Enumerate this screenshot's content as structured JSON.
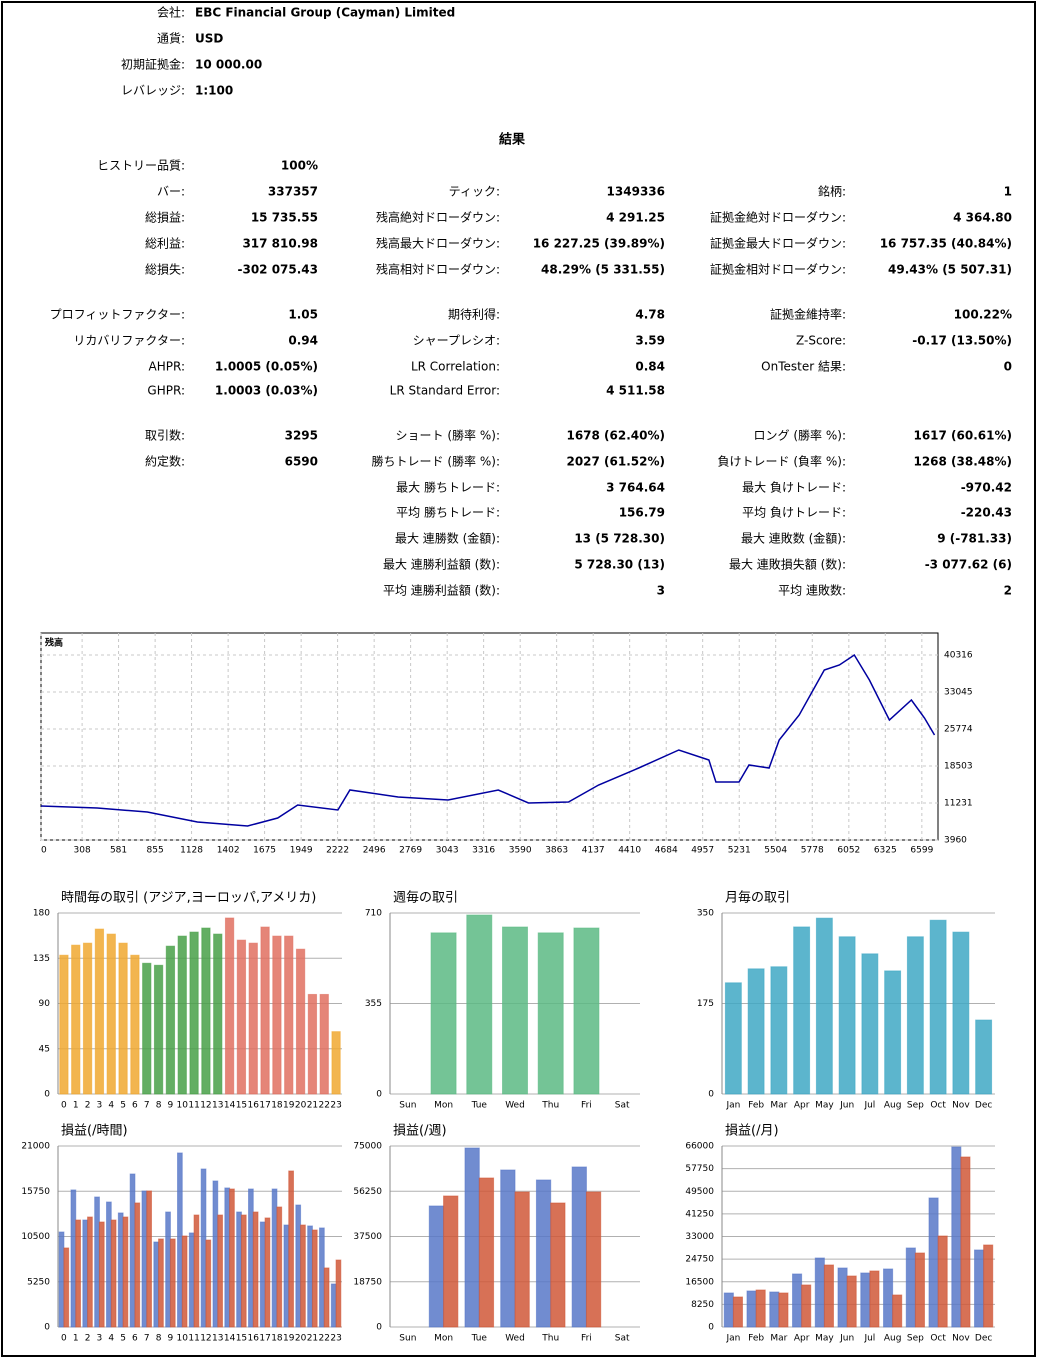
{
  "header": {
    "rows": [
      {
        "label": "会社:",
        "value": "EBC Financial Group (Cayman) Limited"
      },
      {
        "label": "通貨:",
        "value": "USD"
      },
      {
        "label": "初期証拠金:",
        "value": "10 000.00"
      },
      {
        "label": "レバレッジ:",
        "value": "1:100"
      }
    ]
  },
  "results": {
    "title": "結果",
    "rows": [
      [
        "ヒストリー品質:",
        "100%",
        null,
        null,
        null,
        null
      ],
      [
        "バー:",
        "337357",
        "ティック:",
        "1349336",
        "銘柄:",
        "1"
      ],
      [
        "総損益:",
        "15 735.55",
        "残高絶対ドローダウン:",
        "4 291.25",
        "証拠金絶対ドローダウン:",
        "4 364.80"
      ],
      [
        "総利益:",
        "317 810.98",
        "残高最大ドローダウン:",
        "16 227.25 (39.89%)",
        "証拠金最大ドローダウン:",
        "16 757.35 (40.84%)"
      ],
      [
        "総損失:",
        "-302 075.43",
        "残高相対ドローダウン:",
        "48.29% (5 331.55)",
        "証拠金相対ドローダウン:",
        "49.43% (5 507.31)"
      ],
      [
        "プロフィットファクター:",
        "1.05",
        "期待利得:",
        "4.78",
        "証拠金維持率:",
        "100.22%"
      ],
      [
        "リカバリファクター:",
        "0.94",
        "シャープレシオ:",
        "3.59",
        "Z-Score:",
        "-0.17 (13.50%)"
      ],
      [
        "AHPR:",
        "1.0005 (0.05%)",
        "LR Correlation:",
        "0.84",
        "OnTester 結果:",
        "0"
      ],
      [
        "GHPR:",
        "1.0003 (0.03%)",
        "LR Standard Error:",
        "4 511.58",
        null,
        null
      ],
      [
        "取引数:",
        "3295",
        "ショート (勝率 %):",
        "1678 (62.40%)",
        "ロング (勝率 %):",
        "1617 (60.61%)"
      ],
      [
        "約定数:",
        "6590",
        "勝ちトレード (勝率 %):",
        "2027 (61.52%)",
        "負けトレード (負率 %):",
        "1268 (38.48%)"
      ],
      [
        null,
        null,
        "最大 勝ちトレード:",
        "3 764.64",
        "最大 負けトレード:",
        "-970.42"
      ],
      [
        null,
        null,
        "平均 勝ちトレード:",
        "156.79",
        "平均 負けトレード:",
        "-220.43"
      ],
      [
        null,
        null,
        "最大 連勝数 (金額):",
        "13 (5 728.30)",
        "最大 連敗数 (金額):",
        "9 (-781.33)"
      ],
      [
        null,
        null,
        "最大 連勝利益額 (数):",
        "5 728.30 (13)",
        "最大 連敗損失額 (数):",
        "-3 077.62 (6)"
      ],
      [
        null,
        null,
        "平均 連勝利益額 (数):",
        "3",
        "平均 連敗数:",
        "2"
      ]
    ]
  },
  "chart_data": [
    {
      "type": "line",
      "title": "残高",
      "color": "#0000a0",
      "grid": true,
      "x": [
        0,
        421,
        796,
        1172,
        1548,
        1773,
        1923,
        2224,
        2314,
        2675,
        3050,
        3426,
        3652,
        3952,
        4177,
        4478,
        4778,
        5004,
        5056,
        5229,
        5304,
        5455,
        5530,
        5680,
        5868,
        5981,
        6093,
        6206,
        6356,
        6521,
        6619,
        6694
      ],
      "values": [
        10640,
        10250,
        9460,
        7500,
        6710,
        8280,
        10840,
        9860,
        13780,
        12410,
        11820,
        13780,
        11230,
        11430,
        14770,
        18110,
        21650,
        19680,
        15360,
        15360,
        18700,
        18110,
        23610,
        28520,
        37360,
        38350,
        40310,
        35400,
        27540,
        31480,
        27930,
        24590
      ],
      "xlim": [
        0,
        6720
      ],
      "xticks": [
        0,
        308,
        581,
        855,
        1128,
        1402,
        1675,
        1949,
        2222,
        2496,
        2769,
        3043,
        3316,
        3590,
        3863,
        4137,
        4410,
        4684,
        4957,
        5231,
        5504,
        5778,
        6052,
        6325,
        6599
      ],
      "ylim": [
        3960,
        44640
      ],
      "yticks": [
        3960,
        11231,
        18503,
        25774,
        33045,
        40316
      ]
    },
    {
      "type": "bar",
      "title": "時間毎の取引 (アジア,ヨーロッパ,アメリカ)",
      "grid": true,
      "categories": [
        "0",
        "1",
        "2",
        "3",
        "4",
        "5",
        "6",
        "7",
        "8",
        "9",
        "10",
        "11",
        "12",
        "13",
        "14",
        "15",
        "16",
        "17",
        "18",
        "19",
        "20",
        "21",
        "22",
        "23"
      ],
      "values": [
        138,
        148,
        150,
        164,
        159,
        150,
        138,
        130,
        128,
        147,
        157,
        161,
        165,
        159,
        175,
        153,
        150,
        166,
        157,
        157,
        144,
        99,
        99,
        62
      ],
      "colors": [
        "#f0a830",
        "#f0a830",
        "#f0a830",
        "#f0a830",
        "#f0a830",
        "#f0a830",
        "#f0a830",
        "#48a048",
        "#48a048",
        "#48a048",
        "#48a048",
        "#48a048",
        "#48a048",
        "#48a048",
        "#e07060",
        "#e07060",
        "#e07060",
        "#e07060",
        "#e07060",
        "#e07060",
        "#e07060",
        "#e07060",
        "#e07060",
        "#f0a830"
      ],
      "ylim": [
        0,
        180
      ],
      "yticks": [
        0,
        45,
        90,
        135,
        180
      ]
    },
    {
      "type": "bar",
      "title": "週毎の取引",
      "grid": true,
      "color": "#5cba84",
      "categories": [
        "Sun",
        "Mon",
        "Tue",
        "Wed",
        "Thu",
        "Fri",
        "Sat"
      ],
      "values": [
        0,
        632,
        702,
        655,
        632,
        651,
        0
      ],
      "ylim": [
        0,
        710
      ],
      "yticks": [
        0,
        355,
        710
      ]
    },
    {
      "type": "bar",
      "title": "月毎の取引",
      "grid": true,
      "color": "#40a8c4",
      "categories": [
        "Jan",
        "Feb",
        "Mar",
        "Apr",
        "May",
        "Jun",
        "Jul",
        "Aug",
        "Sep",
        "Oct",
        "Nov",
        "Dec"
      ],
      "values": [
        215,
        242,
        246,
        323,
        340,
        304,
        271,
        238,
        304,
        336,
        313,
        143
      ],
      "ylim": [
        0,
        350
      ],
      "yticks": [
        0,
        175,
        350
      ]
    },
    {
      "type": "bar",
      "title": "損益(/時間)",
      "grid": true,
      "categories": [
        "0",
        "1",
        "2",
        "3",
        "4",
        "5",
        "6",
        "7",
        "8",
        "9",
        "10",
        "11",
        "12",
        "13",
        "14",
        "15",
        "16",
        "17",
        "18",
        "19",
        "20",
        "21",
        "22",
        "23"
      ],
      "series": [
        {
          "color": "#5878c8",
          "values": [
            11020,
            15900,
            12410,
            15080,
            14500,
            13230,
            17750,
            15780,
            9860,
            13340,
            20190,
            10910,
            18330,
            16940,
            16130,
            13340,
            16010,
            12180,
            16010,
            11830,
            14150,
            11720,
            11490,
            4990
          ]
        },
        {
          "color": "#d05838",
          "values": [
            9170,
            12410,
            12760,
            12180,
            12410,
            12760,
            14390,
            15780,
            10210,
            10210,
            10560,
            12990,
            10090,
            12990,
            16010,
            12990,
            13340,
            12650,
            13920,
            18100,
            11830,
            11250,
            6850,
            7770
          ]
        }
      ],
      "ylim": [
        0,
        21000
      ],
      "yticks": [
        0,
        5250,
        10500,
        15750,
        21000
      ]
    },
    {
      "type": "bar",
      "title": "損益(/週)",
      "grid": true,
      "categories": [
        "Sun",
        "Mon",
        "Tue",
        "Wed",
        "Thu",
        "Fri",
        "Sat"
      ],
      "series": [
        {
          "color": "#5878c8",
          "values": [
            0,
            50140,
            74170,
            65050,
            60910,
            66300,
            0
          ]
        },
        {
          "color": "#d05838",
          "values": [
            0,
            54280,
            61740,
            55940,
            51380,
            55940,
            0
          ]
        }
      ],
      "ylim": [
        0,
        75000
      ],
      "yticks": [
        0,
        18750,
        37500,
        56250,
        75000
      ]
    },
    {
      "type": "bar",
      "title": "損益(/月)",
      "grid": true,
      "categories": [
        "Jan",
        "Feb",
        "Mar",
        "Apr",
        "May",
        "Jun",
        "Jul",
        "Aug",
        "Sep",
        "Oct",
        "Nov",
        "Dec"
      ],
      "series": [
        {
          "color": "#5878c8",
          "values": [
            12400,
            13130,
            12760,
            19330,
            25160,
            21510,
            19690,
            21150,
            28810,
            47040,
            65630,
            28080
          ]
        },
        {
          "color": "#d05838",
          "values": [
            10940,
            13490,
            12400,
            15320,
            22610,
            18590,
            20420,
            11670,
            26980,
            33180,
            61990,
            29900
          ]
        }
      ],
      "ylim": [
        0,
        66000
      ],
      "yticks": [
        0,
        8250,
        16500,
        24750,
        33000,
        41250,
        49500,
        57750,
        66000
      ]
    }
  ]
}
